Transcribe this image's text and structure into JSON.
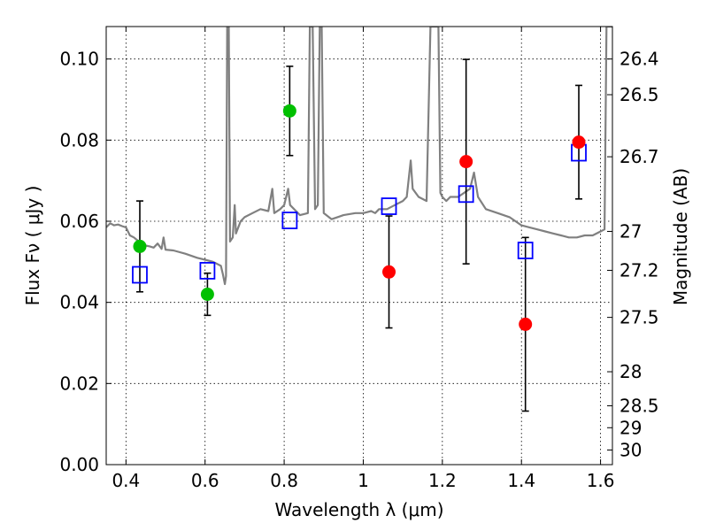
{
  "chart_data": {
    "type": "scatter",
    "xlabel": "Wavelength  λ (μm)",
    "ylabel": "Flux  Fν  ( μJy )",
    "y2label": "Magnitude (AB)",
    "xlim": [
      0.35,
      1.63
    ],
    "ylim": [
      0.0,
      0.108
    ],
    "xticks": [
      0.4,
      0.6,
      0.8,
      1.0,
      1.2,
      1.4,
      1.6
    ],
    "xtick_labels": [
      "0.4",
      "0.6",
      "0.8",
      "1",
      "1.2",
      "1.4",
      "1.6"
    ],
    "yticks": [
      0.0,
      0.02,
      0.04,
      0.06,
      0.08,
      0.1
    ],
    "ytick_labels": [
      "0.00",
      "0.02",
      "0.04",
      "0.06",
      "0.08",
      "0.10"
    ],
    "mag_ticks": [
      {
        "label": "26.4",
        "flux": 0.1
      },
      {
        "label": "26.5",
        "flux": 0.0912
      },
      {
        "label": "26.7",
        "flux": 0.0759
      },
      {
        "label": "27",
        "flux": 0.0575
      },
      {
        "label": "27.2",
        "flux": 0.0479
      },
      {
        "label": "27.5",
        "flux": 0.0363
      },
      {
        "label": "28",
        "flux": 0.0229
      },
      {
        "label": "28.5",
        "flux": 0.0145
      },
      {
        "label": "29",
        "flux": 0.0091
      },
      {
        "label": "30",
        "flux": 0.0036
      }
    ],
    "grid": true,
    "colors": {
      "model": "#808080",
      "green_points": "#00c000",
      "red_points": "#ff0000",
      "squares": "#0000ff",
      "errorbars": "#000000"
    },
    "green_points": [
      {
        "x": 0.435,
        "y": 0.0538,
        "err": 0.0112
      },
      {
        "x": 0.606,
        "y": 0.042,
        "err": 0.0052
      },
      {
        "x": 0.814,
        "y": 0.0872,
        "err": 0.011
      }
    ],
    "red_points": [
      {
        "x": 1.065,
        "y": 0.0475,
        "err": 0.0138
      },
      {
        "x": 1.26,
        "y": 0.0747,
        "err": 0.0252
      },
      {
        "x": 1.41,
        "y": 0.0346,
        "err": 0.0214
      },
      {
        "x": 1.545,
        "y": 0.0795,
        "err": 0.014
      }
    ],
    "model_squares": [
      {
        "x": 0.435,
        "y": 0.0468
      },
      {
        "x": 0.606,
        "y": 0.0478
      },
      {
        "x": 0.814,
        "y": 0.0602
      },
      {
        "x": 1.065,
        "y": 0.0637
      },
      {
        "x": 1.26,
        "y": 0.0667
      },
      {
        "x": 1.41,
        "y": 0.0528
      },
      {
        "x": 1.545,
        "y": 0.0769
      }
    ],
    "model_spectrum": [
      [
        0.35,
        0.0585
      ],
      [
        0.36,
        0.0595
      ],
      [
        0.37,
        0.059
      ],
      [
        0.38,
        0.0592
      ],
      [
        0.39,
        0.0588
      ],
      [
        0.4,
        0.0585
      ],
      [
        0.41,
        0.0565
      ],
      [
        0.42,
        0.056
      ],
      [
        0.43,
        0.0552
      ],
      [
        0.44,
        0.054
      ],
      [
        0.45,
        0.054
      ],
      [
        0.46,
        0.0538
      ],
      [
        0.47,
        0.0535
      ],
      [
        0.48,
        0.0545
      ],
      [
        0.49,
        0.0532
      ],
      [
        0.495,
        0.056
      ],
      [
        0.5,
        0.053
      ],
      [
        0.52,
        0.0528
      ],
      [
        0.55,
        0.052
      ],
      [
        0.58,
        0.051
      ],
      [
        0.6,
        0.0505
      ],
      [
        0.62,
        0.05
      ],
      [
        0.64,
        0.049
      ],
      [
        0.645,
        0.047
      ],
      [
        0.65,
        0.0445
      ],
      [
        0.653,
        0.0465
      ],
      [
        0.656,
        0.108
      ],
      [
        0.66,
        0.108
      ],
      [
        0.663,
        0.055
      ],
      [
        0.67,
        0.056
      ],
      [
        0.675,
        0.064
      ],
      [
        0.678,
        0.057
      ],
      [
        0.69,
        0.06
      ],
      [
        0.7,
        0.061
      ],
      [
        0.72,
        0.062
      ],
      [
        0.74,
        0.063
      ],
      [
        0.76,
        0.0625
      ],
      [
        0.77,
        0.068
      ],
      [
        0.775,
        0.062
      ],
      [
        0.79,
        0.063
      ],
      [
        0.8,
        0.064
      ],
      [
        0.81,
        0.068
      ],
      [
        0.815,
        0.064
      ],
      [
        0.84,
        0.0615
      ],
      [
        0.86,
        0.062
      ],
      [
        0.865,
        0.108
      ],
      [
        0.872,
        0.108
      ],
      [
        0.878,
        0.063
      ],
      [
        0.885,
        0.064
      ],
      [
        0.89,
        0.108
      ],
      [
        0.895,
        0.108
      ],
      [
        0.9,
        0.062
      ],
      [
        0.92,
        0.0605
      ],
      [
        0.95,
        0.0615
      ],
      [
        0.98,
        0.062
      ],
      [
        1.0,
        0.062
      ],
      [
        1.02,
        0.0625
      ],
      [
        1.03,
        0.062
      ],
      [
        1.04,
        0.063
      ],
      [
        1.06,
        0.063
      ],
      [
        1.08,
        0.064
      ],
      [
        1.1,
        0.065
      ],
      [
        1.11,
        0.066
      ],
      [
        1.12,
        0.075
      ],
      [
        1.125,
        0.068
      ],
      [
        1.14,
        0.066
      ],
      [
        1.16,
        0.065
      ],
      [
        1.17,
        0.108
      ],
      [
        1.18,
        0.108
      ],
      [
        1.19,
        0.108
      ],
      [
        1.195,
        0.067
      ],
      [
        1.2,
        0.066
      ],
      [
        1.21,
        0.065
      ],
      [
        1.22,
        0.066
      ],
      [
        1.24,
        0.066
      ],
      [
        1.27,
        0.068
      ],
      [
        1.28,
        0.072
      ],
      [
        1.29,
        0.066
      ],
      [
        1.31,
        0.063
      ],
      [
        1.34,
        0.062
      ],
      [
        1.37,
        0.061
      ],
      [
        1.4,
        0.059
      ],
      [
        1.42,
        0.0585
      ],
      [
        1.44,
        0.058
      ],
      [
        1.46,
        0.0575
      ],
      [
        1.48,
        0.057
      ],
      [
        1.5,
        0.0565
      ],
      [
        1.52,
        0.056
      ],
      [
        1.54,
        0.056
      ],
      [
        1.56,
        0.0565
      ],
      [
        1.58,
        0.0565
      ],
      [
        1.6,
        0.0575
      ],
      [
        1.61,
        0.058
      ],
      [
        1.615,
        0.108
      ],
      [
        1.63,
        0.108
      ]
    ]
  }
}
